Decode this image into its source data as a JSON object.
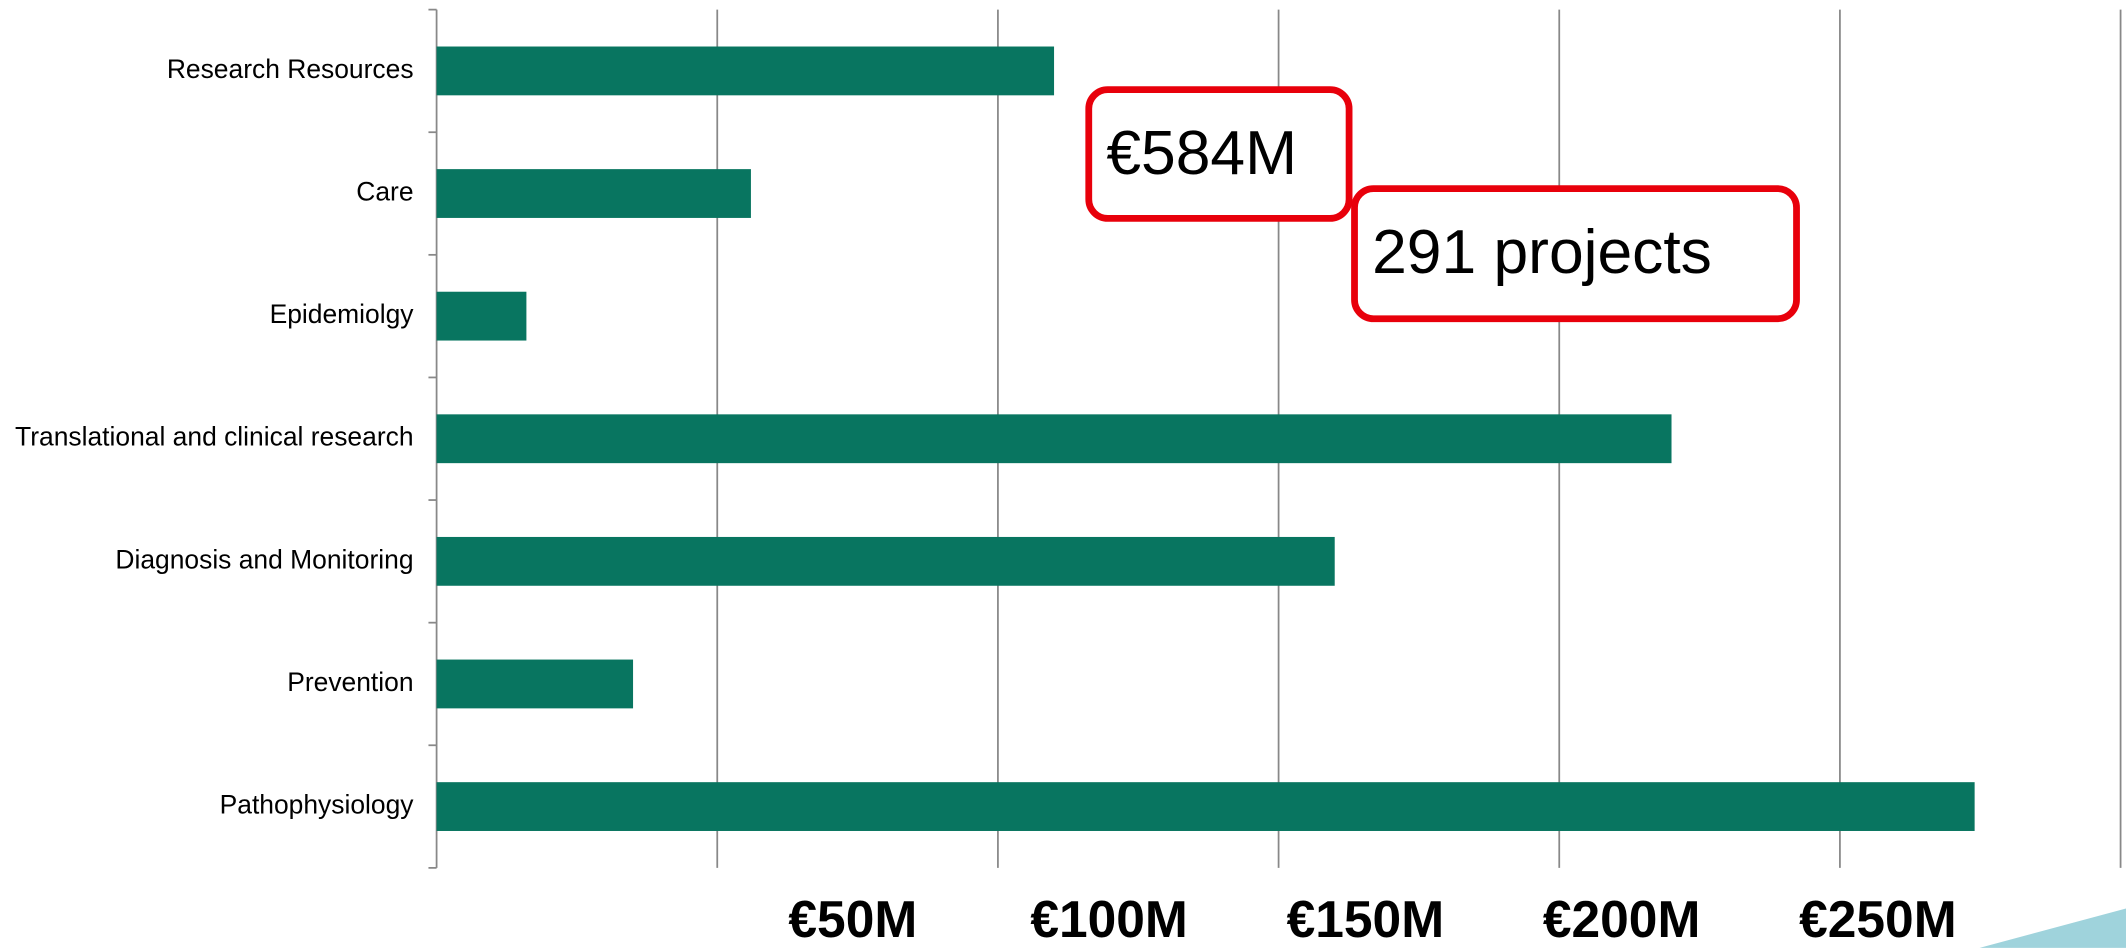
{
  "chart_data": {
    "type": "bar",
    "orientation": "horizontal",
    "categories": [
      "Research Resources",
      "Care",
      "Epidemiolgy",
      "Translational and clinical research",
      "Diagnosis and Monitoring",
      "Prevention",
      "Pathophysiology"
    ],
    "values": [
      110,
      56,
      16,
      220,
      160,
      35,
      274
    ],
    "color": "#087560",
    "xlim": [
      0,
      300
    ],
    "xticks": [
      {
        "value": 50,
        "label": "€50M"
      },
      {
        "value": 100,
        "label": "€100M"
      },
      {
        "value": 150,
        "label": "€150M"
      },
      {
        "value": 200,
        "label": "€200M"
      },
      {
        "value": 250,
        "label": "€250M"
      }
    ],
    "grid": true,
    "annotations": [
      "€584M",
      "291 projects"
    ]
  }
}
